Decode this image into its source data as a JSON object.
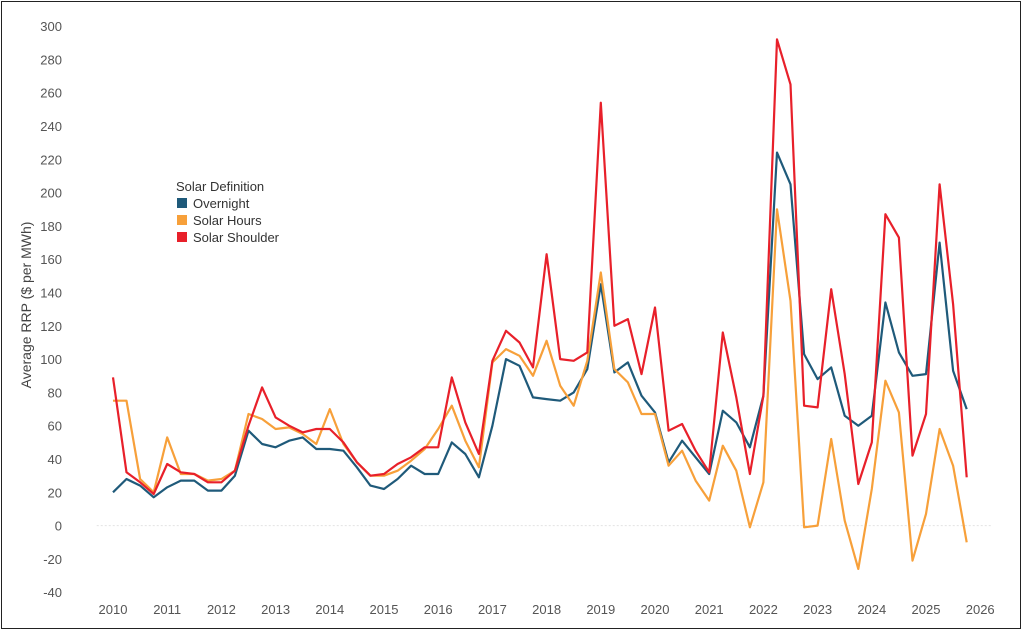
{
  "chart_data": {
    "type": "line",
    "title": "",
    "xlabel": "",
    "ylabel": "Average RRP ($ per MWh)",
    "ylim": [
      -40,
      300
    ],
    "yticks": [
      -40,
      -20,
      0,
      20,
      40,
      60,
      80,
      100,
      120,
      140,
      160,
      180,
      200,
      220,
      240,
      260,
      280,
      300
    ],
    "xlim": [
      2009.7,
      2026.2
    ],
    "xticks": [
      2010,
      2011,
      2012,
      2013,
      2014,
      2015,
      2016,
      2017,
      2018,
      2019,
      2020,
      2021,
      2022,
      2023,
      2024,
      2025,
      2026
    ],
    "x_start": 2010,
    "x_step": 0.25,
    "grid": "zero-line only",
    "legend": {
      "title": "Solar Definition",
      "placement": "upper-left"
    },
    "series": [
      {
        "name": "Overnight",
        "color": "#1f5a7a",
        "values": [
          20,
          28,
          24,
          17,
          23,
          27,
          27,
          21,
          21,
          30,
          57,
          49,
          47,
          51,
          53,
          46,
          46,
          45,
          35,
          24,
          22,
          28,
          36,
          31,
          31,
          50,
          43,
          29,
          60,
          100,
          96,
          77,
          76,
          75,
          80,
          94,
          145,
          92,
          98,
          78,
          68,
          38,
          51,
          41,
          31,
          69,
          62,
          47,
          78,
          224,
          205,
          103,
          88,
          95,
          66,
          60,
          66,
          134,
          104,
          90,
          91,
          170,
          93,
          70
        ]
      },
      {
        "name": "Solar Hours",
        "color": "#f7a03a",
        "values": [
          75,
          75,
          28,
          20,
          53,
          31,
          31,
          27,
          28,
          33,
          67,
          64,
          58,
          59,
          55,
          49,
          70,
          49,
          38,
          30,
          30,
          33,
          39,
          46,
          58,
          72,
          51,
          35,
          98,
          106,
          102,
          90,
          111,
          84,
          72,
          99,
          152,
          94,
          86,
          67,
          67,
          36,
          45,
          27,
          15,
          48,
          33,
          -1,
          26,
          190,
          135,
          -1,
          0,
          52,
          3,
          -26,
          22,
          87,
          68,
          -21,
          7,
          58,
          36,
          -10
        ]
      },
      {
        "name": "Solar Shoulder",
        "color": "#e8202a",
        "values": [
          89,
          32,
          26,
          19,
          37,
          32,
          31,
          26,
          26,
          33,
          60,
          83,
          65,
          60,
          56,
          58,
          58,
          50,
          38,
          30,
          31,
          37,
          41,
          47,
          47,
          89,
          62,
          43,
          99,
          117,
          110,
          95,
          163,
          100,
          99,
          104,
          254,
          120,
          124,
          91,
          131,
          57,
          61,
          45,
          32,
          116,
          77,
          31,
          78,
          292,
          265,
          72,
          71,
          142,
          91,
          25,
          50,
          187,
          173,
          42,
          67,
          205,
          133,
          29
        ]
      }
    ]
  }
}
